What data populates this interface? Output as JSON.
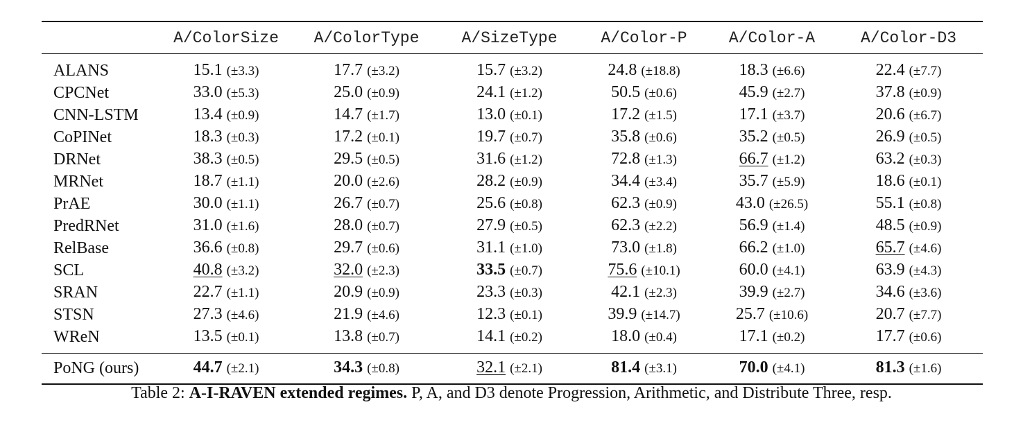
{
  "table": {
    "columns": [
      "",
      "A/ColorSize",
      "A/ColorType",
      "A/SizeType",
      "A/Color-P",
      "A/Color-A",
      "A/Color-D3"
    ],
    "rows": [
      {
        "name": "ALANS",
        "cells": [
          {
            "value": "15.1",
            "std": "(±3.3)",
            "bold": false,
            "underline": false
          },
          {
            "value": "17.7",
            "std": "(±3.2)",
            "bold": false,
            "underline": false
          },
          {
            "value": "15.7",
            "std": "(±3.2)",
            "bold": false,
            "underline": false
          },
          {
            "value": "24.8",
            "std": "(±18.8)",
            "bold": false,
            "underline": false
          },
          {
            "value": "18.3",
            "std": "(±6.6)",
            "bold": false,
            "underline": false
          },
          {
            "value": "22.4",
            "std": "(±7.7)",
            "bold": false,
            "underline": false
          }
        ]
      },
      {
        "name": "CPCNet",
        "cells": [
          {
            "value": "33.0",
            "std": "(±5.3)",
            "bold": false,
            "underline": false
          },
          {
            "value": "25.0",
            "std": "(±0.9)",
            "bold": false,
            "underline": false
          },
          {
            "value": "24.1",
            "std": "(±1.2)",
            "bold": false,
            "underline": false
          },
          {
            "value": "50.5",
            "std": "(±0.6)",
            "bold": false,
            "underline": false
          },
          {
            "value": "45.9",
            "std": "(±2.7)",
            "bold": false,
            "underline": false
          },
          {
            "value": "37.8",
            "std": "(±0.9)",
            "bold": false,
            "underline": false
          }
        ]
      },
      {
        "name": "CNN-LSTM",
        "cells": [
          {
            "value": "13.4",
            "std": "(±0.9)",
            "bold": false,
            "underline": false
          },
          {
            "value": "14.7",
            "std": "(±1.7)",
            "bold": false,
            "underline": false
          },
          {
            "value": "13.0",
            "std": "(±0.1)",
            "bold": false,
            "underline": false
          },
          {
            "value": "17.2",
            "std": "(±1.5)",
            "bold": false,
            "underline": false
          },
          {
            "value": "17.1",
            "std": "(±3.7)",
            "bold": false,
            "underline": false
          },
          {
            "value": "20.6",
            "std": "(±6.7)",
            "bold": false,
            "underline": false
          }
        ]
      },
      {
        "name": "CoPINet",
        "cells": [
          {
            "value": "18.3",
            "std": "(±0.3)",
            "bold": false,
            "underline": false
          },
          {
            "value": "17.2",
            "std": "(±0.1)",
            "bold": false,
            "underline": false
          },
          {
            "value": "19.7",
            "std": "(±0.7)",
            "bold": false,
            "underline": false
          },
          {
            "value": "35.8",
            "std": "(±0.6)",
            "bold": false,
            "underline": false
          },
          {
            "value": "35.2",
            "std": "(±0.5)",
            "bold": false,
            "underline": false
          },
          {
            "value": "26.9",
            "std": "(±0.5)",
            "bold": false,
            "underline": false
          }
        ]
      },
      {
        "name": "DRNet",
        "cells": [
          {
            "value": "38.3",
            "std": "(±0.5)",
            "bold": false,
            "underline": false
          },
          {
            "value": "29.5",
            "std": "(±0.5)",
            "bold": false,
            "underline": false
          },
          {
            "value": "31.6",
            "std": "(±1.2)",
            "bold": false,
            "underline": false
          },
          {
            "value": "72.8",
            "std": "(±1.3)",
            "bold": false,
            "underline": false
          },
          {
            "value": "66.7",
            "std": "(±1.2)",
            "bold": false,
            "underline": true
          },
          {
            "value": "63.2",
            "std": "(±0.3)",
            "bold": false,
            "underline": false
          }
        ]
      },
      {
        "name": "MRNet",
        "cells": [
          {
            "value": "18.7",
            "std": "(±1.1)",
            "bold": false,
            "underline": false
          },
          {
            "value": "20.0",
            "std": "(±2.6)",
            "bold": false,
            "underline": false
          },
          {
            "value": "28.2",
            "std": "(±0.9)",
            "bold": false,
            "underline": false
          },
          {
            "value": "34.4",
            "std": "(±3.4)",
            "bold": false,
            "underline": false
          },
          {
            "value": "35.7",
            "std": "(±5.9)",
            "bold": false,
            "underline": false
          },
          {
            "value": "18.6",
            "std": "(±0.1)",
            "bold": false,
            "underline": false
          }
        ]
      },
      {
        "name": "PrAE",
        "cells": [
          {
            "value": "30.0",
            "std": "(±1.1)",
            "bold": false,
            "underline": false
          },
          {
            "value": "26.7",
            "std": "(±0.7)",
            "bold": false,
            "underline": false
          },
          {
            "value": "25.6",
            "std": "(±0.8)",
            "bold": false,
            "underline": false
          },
          {
            "value": "62.3",
            "std": "(±0.9)",
            "bold": false,
            "underline": false
          },
          {
            "value": "43.0",
            "std": "(±26.5)",
            "bold": false,
            "underline": false
          },
          {
            "value": "55.1",
            "std": "(±0.8)",
            "bold": false,
            "underline": false
          }
        ]
      },
      {
        "name": "PredRNet",
        "cells": [
          {
            "value": "31.0",
            "std": "(±1.6)",
            "bold": false,
            "underline": false
          },
          {
            "value": "28.0",
            "std": "(±0.7)",
            "bold": false,
            "underline": false
          },
          {
            "value": "27.9",
            "std": "(±0.5)",
            "bold": false,
            "underline": false
          },
          {
            "value": "62.3",
            "std": "(±2.2)",
            "bold": false,
            "underline": false
          },
          {
            "value": "56.9",
            "std": "(±1.4)",
            "bold": false,
            "underline": false
          },
          {
            "value": "48.5",
            "std": "(±0.9)",
            "bold": false,
            "underline": false
          }
        ]
      },
      {
        "name": "RelBase",
        "cells": [
          {
            "value": "36.6",
            "std": "(±0.8)",
            "bold": false,
            "underline": false
          },
          {
            "value": "29.7",
            "std": "(±0.6)",
            "bold": false,
            "underline": false
          },
          {
            "value": "31.1",
            "std": "(±1.0)",
            "bold": false,
            "underline": false
          },
          {
            "value": "73.0",
            "std": "(±1.8)",
            "bold": false,
            "underline": false
          },
          {
            "value": "66.2",
            "std": "(±1.0)",
            "bold": false,
            "underline": false
          },
          {
            "value": "65.7",
            "std": "(±4.6)",
            "bold": false,
            "underline": true
          }
        ]
      },
      {
        "name": "SCL",
        "cells": [
          {
            "value": "40.8",
            "std": "(±3.2)",
            "bold": false,
            "underline": true
          },
          {
            "value": "32.0",
            "std": "(±2.3)",
            "bold": false,
            "underline": true
          },
          {
            "value": "33.5",
            "std": "(±0.7)",
            "bold": true,
            "underline": false
          },
          {
            "value": "75.6",
            "std": "(±10.1)",
            "bold": false,
            "underline": true
          },
          {
            "value": "60.0",
            "std": "(±4.1)",
            "bold": false,
            "underline": false
          },
          {
            "value": "63.9",
            "std": "(±4.3)",
            "bold": false,
            "underline": false
          }
        ]
      },
      {
        "name": "SRAN",
        "cells": [
          {
            "value": "22.7",
            "std": "(±1.1)",
            "bold": false,
            "underline": false
          },
          {
            "value": "20.9",
            "std": "(±0.9)",
            "bold": false,
            "underline": false
          },
          {
            "value": "23.3",
            "std": "(±0.3)",
            "bold": false,
            "underline": false
          },
          {
            "value": "42.1",
            "std": "(±2.3)",
            "bold": false,
            "underline": false
          },
          {
            "value": "39.9",
            "std": "(±2.7)",
            "bold": false,
            "underline": false
          },
          {
            "value": "34.6",
            "std": "(±3.6)",
            "bold": false,
            "underline": false
          }
        ]
      },
      {
        "name": "STSN",
        "cells": [
          {
            "value": "27.3",
            "std": "(±4.6)",
            "bold": false,
            "underline": false
          },
          {
            "value": "21.9",
            "std": "(±4.6)",
            "bold": false,
            "underline": false
          },
          {
            "value": "12.3",
            "std": "(±0.1)",
            "bold": false,
            "underline": false
          },
          {
            "value": "39.9",
            "std": "(±14.7)",
            "bold": false,
            "underline": false
          },
          {
            "value": "25.7",
            "std": "(±10.6)",
            "bold": false,
            "underline": false
          },
          {
            "value": "20.7",
            "std": "(±7.7)",
            "bold": false,
            "underline": false
          }
        ]
      },
      {
        "name": "WReN",
        "cells": [
          {
            "value": "13.5",
            "std": "(±0.1)",
            "bold": false,
            "underline": false
          },
          {
            "value": "13.8",
            "std": "(±0.7)",
            "bold": false,
            "underline": false
          },
          {
            "value": "14.1",
            "std": "(±0.2)",
            "bold": false,
            "underline": false
          },
          {
            "value": "18.0",
            "std": "(±0.4)",
            "bold": false,
            "underline": false
          },
          {
            "value": "17.1",
            "std": "(±0.2)",
            "bold": false,
            "underline": false
          },
          {
            "value": "17.7",
            "std": "(±0.6)",
            "bold": false,
            "underline": false
          }
        ]
      }
    ],
    "ours": {
      "name": "PoNG (ours)",
      "cells": [
        {
          "value": "44.7",
          "std": "(±2.1)",
          "bold": true,
          "underline": false
        },
        {
          "value": "34.3",
          "std": "(±0.8)",
          "bold": true,
          "underline": false
        },
        {
          "value": "32.1",
          "std": "(±2.1)",
          "bold": false,
          "underline": true
        },
        {
          "value": "81.4",
          "std": "(±3.1)",
          "bold": true,
          "underline": false
        },
        {
          "value": "70.0",
          "std": "(±4.1)",
          "bold": true,
          "underline": false
        },
        {
          "value": "81.3",
          "std": "(±1.6)",
          "bold": true,
          "underline": false
        }
      ]
    }
  },
  "caption": {
    "prefix": "Table 2: ",
    "bold": "A-I-RAVEN extended regimes.",
    "rest": " P, A, and D3 denote Progression, Arithmetic, and Distribute Three, resp."
  }
}
